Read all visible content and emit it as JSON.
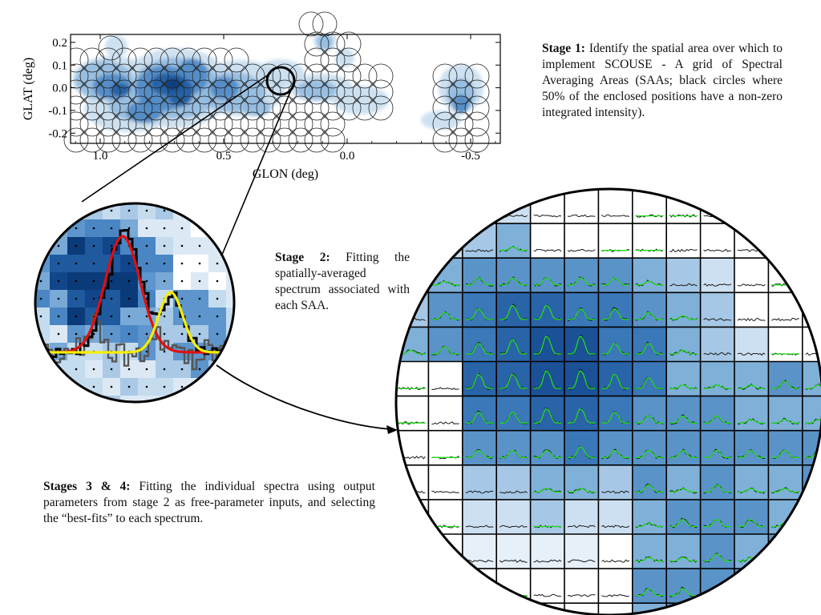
{
  "top_map": {
    "y_axis_label": "GLAT (deg)",
    "x_axis_label": "GLON (deg)",
    "y_ticks": [
      {
        "value": 0.2,
        "label": "0.2"
      },
      {
        "value": 0.1,
        "label": "0.1"
      },
      {
        "value": 0.0,
        "label": "0.0"
      },
      {
        "value": -0.1,
        "label": "-0.1"
      },
      {
        "value": -0.2,
        "label": "-0.2"
      }
    ],
    "x_ticks": [
      {
        "value": 1.0,
        "label": "1.0"
      },
      {
        "value": 0.5,
        "label": "0.5"
      },
      {
        "value": 0.0,
        "label": "0.0"
      },
      {
        "value": -0.5,
        "label": "-0.5"
      }
    ],
    "x_range": [
      1.12,
      -0.62
    ],
    "y_range": [
      -0.245,
      0.235
    ],
    "circle_color": "#000000",
    "emission_colors": [
      "#c5dcef",
      "#8fbadf",
      "#4a86c3",
      "#1f5a9e",
      "#0b3a78"
    ]
  },
  "stage1": {
    "title": "Stage 1:",
    "text": " Identify the spatial area over which to implement SCOUSE - A grid of Spectral Averaging Areas (SAAs; black circles where 50% of the enclosed positions have a non-zero integrated intensity)."
  },
  "stage2": {
    "title": "Stage 2:",
    "text": " Fitting the spatially-averaged spectrum associated with each SAA."
  },
  "stage34": {
    "title": "Stages 3 & 4:",
    "text": " Fitting the individual spectra using output parameters from stage 2 as free-parameter inputs, and selecting the “best-fits” to each spectrum."
  },
  "fit_colors": {
    "spectrum": "#000000",
    "residual": "#555555",
    "component_1": "#e01010",
    "component_2": "#f5ee00",
    "total_fit": "#22d61e",
    "grid_spectrum": "#1a1a1a",
    "grid_fit": "#22e01e"
  }
}
